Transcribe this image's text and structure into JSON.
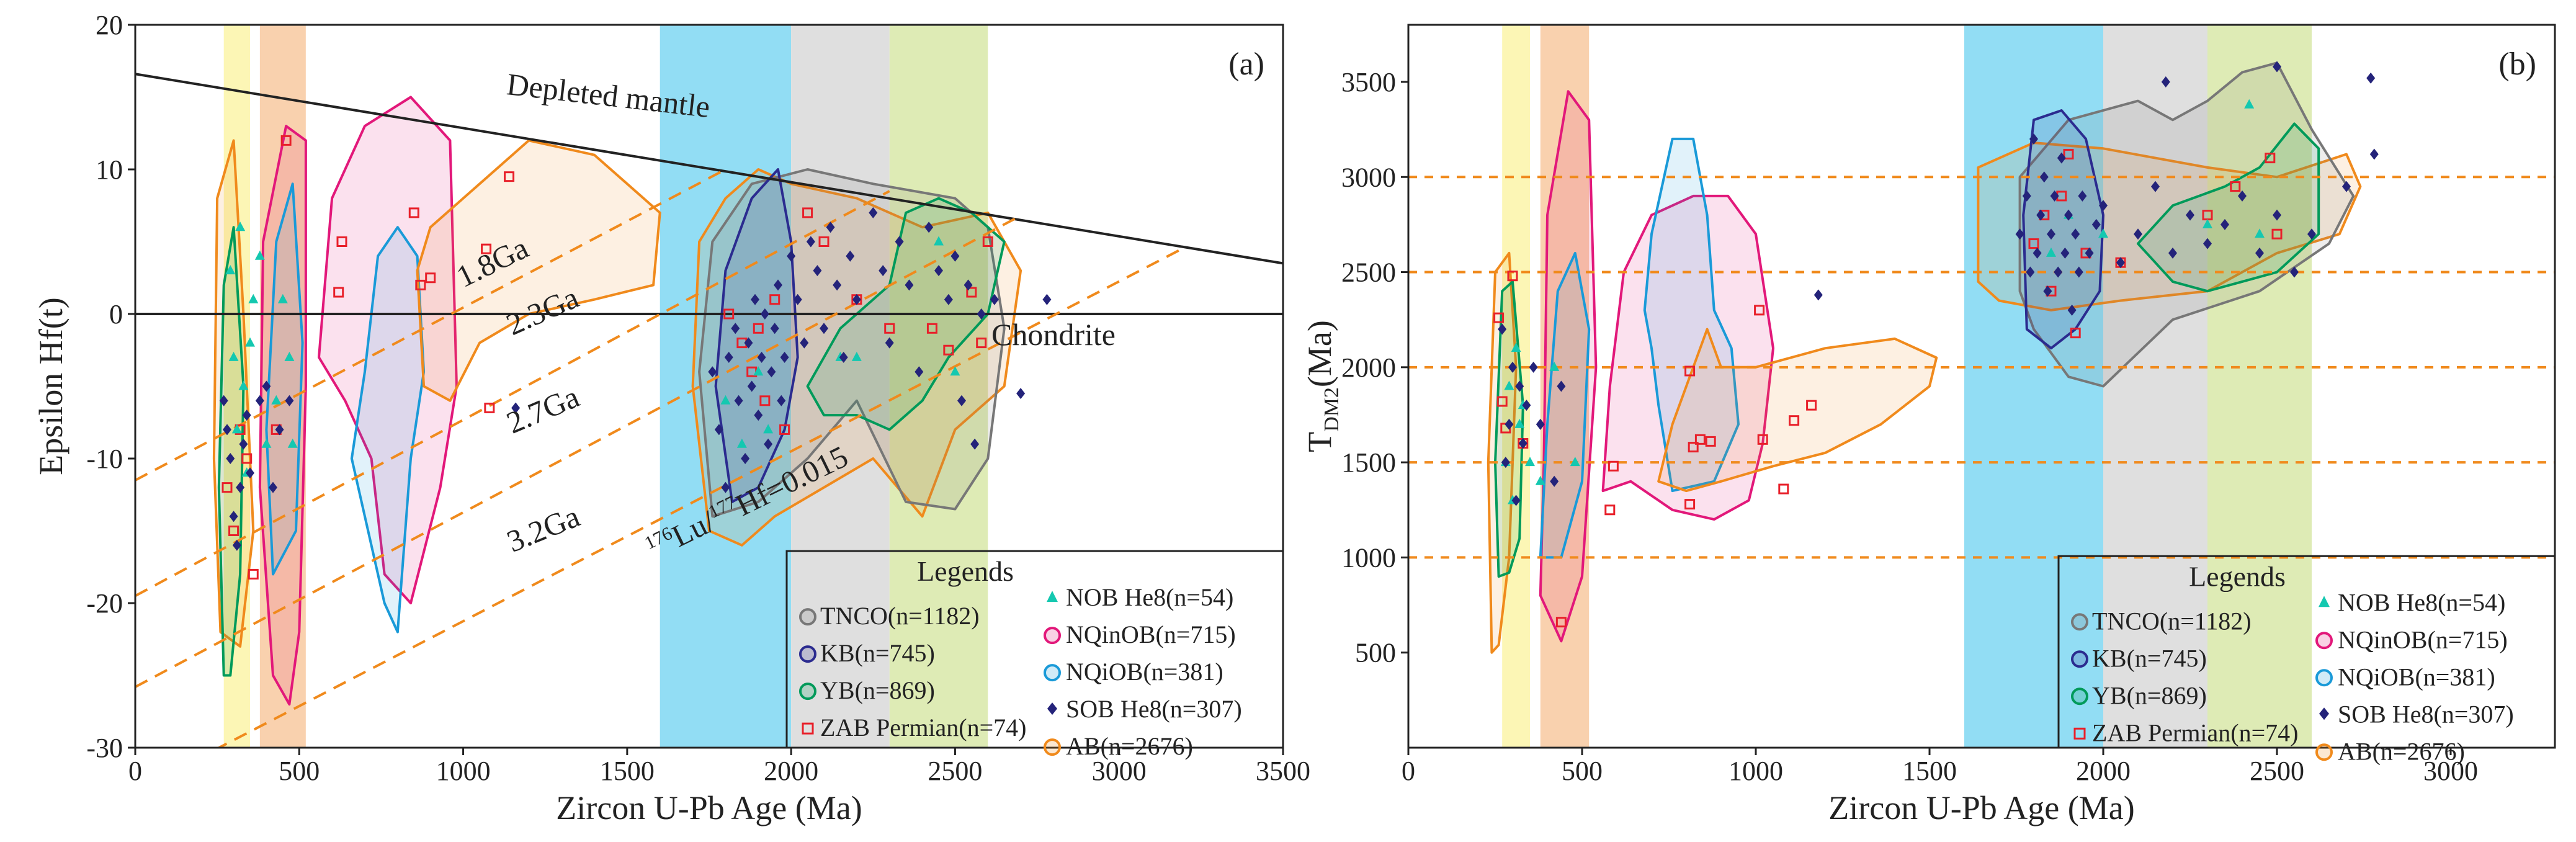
{
  "chart_data": [
    {
      "type": "scatter",
      "panel_label": "(a)",
      "xlabel": "Zircon U-Pb Age (Ma)",
      "ylabel": "Epsilon Hf(t)",
      "xlim": [
        0,
        3500
      ],
      "ylim": [
        -30,
        20
      ],
      "xticks": [
        "0",
        "500",
        "1000",
        "1500",
        "2000",
        "2500",
        "3000",
        "3500"
      ],
      "yticks": [
        "20",
        "10",
        "0",
        "-10",
        "-20",
        "-30"
      ],
      "annotations": {
        "depleted_mantle": "Depleted mantle",
        "chondrite": "Chondrite",
        "lines": [
          "1.8Ga",
          "2.3Ga",
          "2.7Ga",
          "3.2Ga"
        ],
        "lu_hf_sup1": "176",
        "lu_hf_mid": "Lu/",
        "lu_hf_sup2": "177",
        "lu_hf_end": "Hf=0.015"
      },
      "reference_lines": [
        {
          "name": "Depleted mantle",
          "x": [
            0,
            3500
          ],
          "y": [
            16.6,
            3.5
          ]
        },
        {
          "name": "Chondrite",
          "x": [
            0,
            3500
          ],
          "y": [
            0,
            0
          ]
        },
        {
          "name": "1.8Ga",
          "x": [
            0,
            1800
          ],
          "y": [
            -11.5,
            10
          ]
        },
        {
          "name": "2.3Ga",
          "x": [
            0,
            2300
          ],
          "y": [
            -19.5,
            8.5
          ]
        },
        {
          "name": "2.7Ga",
          "x": [
            0,
            2700
          ],
          "y": [
            -25.8,
            6.8
          ]
        },
        {
          "name": "3.2Ga",
          "x": [
            0,
            3200
          ],
          "y": [
            -33,
            4.6
          ]
        }
      ],
      "bands": [
        {
          "x": [
            270,
            350
          ],
          "color": "#fbf5a8"
        },
        {
          "x": [
            380,
            520
          ],
          "color": "#f8c9a0"
        },
        {
          "x": [
            1600,
            2000
          ],
          "color": "#7fd7f2"
        },
        {
          "x": [
            2000,
            2300
          ],
          "color": "#d9d9d9"
        },
        {
          "x": [
            2300,
            2600
          ],
          "color": "#d8e8a8"
        }
      ],
      "series": [
        {
          "name": "ZAB Permian",
          "points": [
            [
              280,
              -12
            ],
            [
              300,
              -15
            ],
            [
              320,
              -8
            ],
            [
              340,
              -10
            ],
            [
              360,
              -18
            ],
            [
              430,
              -8
            ],
            [
              460,
              12
            ],
            [
              630,
              5
            ],
            [
              620,
              1.5
            ],
            [
              850,
              7
            ],
            [
              870,
              2
            ],
            [
              900,
              2.5
            ],
            [
              1080,
              -6.5
            ],
            [
              1070,
              4.5
            ],
            [
              1140,
              9.5
            ],
            [
              1810,
              0
            ],
            [
              1850,
              -2
            ],
            [
              1880,
              -4
            ],
            [
              1900,
              -1
            ],
            [
              1920,
              -6
            ],
            [
              1950,
              1
            ],
            [
              1980,
              -8
            ],
            [
              2050,
              7
            ],
            [
              2100,
              5
            ],
            [
              2200,
              1
            ],
            [
              2300,
              -1
            ],
            [
              2430,
              -1
            ],
            [
              2480,
              -2.5
            ],
            [
              2550,
              1.5
            ],
            [
              2600,
              5
            ],
            [
              2580,
              -2
            ]
          ]
        },
        {
          "name": "NOB He8",
          "points": [
            [
              290,
              3
            ],
            [
              300,
              -3
            ],
            [
              310,
              -8
            ],
            [
              320,
              6
            ],
            [
              330,
              -5
            ],
            [
              340,
              -11
            ],
            [
              350,
              -2
            ],
            [
              360,
              1
            ],
            [
              380,
              4
            ],
            [
              400,
              -9
            ],
            [
              430,
              -6
            ],
            [
              450,
              1
            ],
            [
              480,
              -9
            ],
            [
              470,
              -3
            ],
            [
              1800,
              -6
            ],
            [
              1850,
              -9
            ],
            [
              1900,
              -4
            ],
            [
              1930,
              -8
            ],
            [
              2150,
              -3
            ],
            [
              2200,
              -3
            ],
            [
              2450,
              5
            ],
            [
              2500,
              -4
            ]
          ]
        },
        {
          "name": "SOB He8",
          "points": [
            [
              270,
              -6
            ],
            [
              280,
              -8
            ],
            [
              290,
              -10
            ],
            [
              300,
              -14
            ],
            [
              310,
              -16
            ],
            [
              320,
              -12
            ],
            [
              330,
              -9
            ],
            [
              340,
              -7
            ],
            [
              350,
              -11
            ],
            [
              380,
              -6
            ],
            [
              400,
              -5
            ],
            [
              420,
              -12
            ],
            [
              440,
              -8
            ],
            [
              470,
              -6
            ],
            [
              1160,
              -6.5
            ],
            [
              1760,
              -4
            ],
            [
              1780,
              -8
            ],
            [
              1800,
              -12
            ],
            [
              1810,
              -3
            ],
            [
              1830,
              -1
            ],
            [
              1840,
              -6
            ],
            [
              1860,
              -10
            ],
            [
              1870,
              -2
            ],
            [
              1880,
              -5
            ],
            [
              1890,
              1
            ],
            [
              1900,
              -7
            ],
            [
              1910,
              -3
            ],
            [
              1920,
              0
            ],
            [
              1930,
              -9
            ],
            [
              1940,
              -4
            ],
            [
              1950,
              -1
            ],
            [
              1960,
              2
            ],
            [
              1970,
              -6
            ],
            [
              1980,
              -3
            ],
            [
              2000,
              4
            ],
            [
              2020,
              1
            ],
            [
              2040,
              -2
            ],
            [
              2060,
              5
            ],
            [
              2080,
              3
            ],
            [
              2100,
              -1
            ],
            [
              2120,
              6
            ],
            [
              2140,
              2
            ],
            [
              2160,
              -3
            ],
            [
              2180,
              4
            ],
            [
              2200,
              1
            ],
            [
              2250,
              7
            ],
            [
              2280,
              3
            ],
            [
              2300,
              -2
            ],
            [
              2330,
              5
            ],
            [
              2360,
              2
            ],
            [
              2390,
              -4
            ],
            [
              2420,
              6
            ],
            [
              2450,
              3
            ],
            [
              2480,
              1
            ],
            [
              2500,
              4
            ],
            [
              2520,
              -6
            ],
            [
              2540,
              2
            ],
            [
              2560,
              -9
            ],
            [
              2580,
              0
            ],
            [
              2620,
              1
            ],
            [
              2700,
              -5.5
            ],
            [
              2780,
              1
            ]
          ]
        }
      ],
      "legend": {
        "title": "Legends",
        "left": [
          "TNCO(n=1182)",
          "KB(n=745)",
          "YB(n=869)",
          "ZAB Permian(n=74)"
        ],
        "right": [
          "NOB He8(n=54)",
          "NQinOB(n=715)",
          "NQiOB(n=381)",
          "SOB He8(n=307)",
          "AB(n=2676)"
        ]
      }
    },
    {
      "type": "scatter",
      "panel_label": "(b)",
      "xlabel": "Zircon U-Pb Age (Ma)",
      "ylabel_main": "T",
      "ylabel_sub": "DM2",
      "ylabel_unit": "(Ma)",
      "xlim": [
        0,
        3300
      ],
      "ylim": [
        0,
        3800
      ],
      "xticks": [
        "0",
        "500",
        "1000",
        "1500",
        "2000",
        "2500",
        "3000"
      ],
      "yticks": [
        "500",
        "1000",
        "1500",
        "2000",
        "2500",
        "3000",
        "3500"
      ],
      "hlines": [
        1000,
        1500,
        2000,
        2500,
        3000
      ],
      "bands": [
        {
          "x": [
            270,
            350
          ],
          "color": "#fbf5a8"
        },
        {
          "x": [
            380,
            520
          ],
          "color": "#f8c9a0"
        },
        {
          "x": [
            1600,
            2000
          ],
          "color": "#7fd7f2"
        },
        {
          "x": [
            2000,
            2300
          ],
          "color": "#d9d9d9"
        },
        {
          "x": [
            2300,
            2600
          ],
          "color": "#d8e8a8"
        }
      ],
      "series": [
        {
          "name": "ZAB Permian",
          "points": [
            [
              260,
              2260
            ],
            [
              270,
              1820
            ],
            [
              280,
              1680
            ],
            [
              300,
              2480
            ],
            [
              330,
              1600
            ],
            [
              440,
              660
            ],
            [
              580,
              1250
            ],
            [
              590,
              1480
            ],
            [
              810,
              1280
            ],
            [
              810,
              1980
            ],
            [
              820,
              1580
            ],
            [
              840,
              1620
            ],
            [
              870,
              1610
            ],
            [
              1010,
              2300
            ],
            [
              1020,
              1620
            ],
            [
              1080,
              1360
            ],
            [
              1110,
              1720
            ],
            [
              1160,
              1800
            ],
            [
              1800,
              2650
            ],
            [
              1830,
              2800
            ],
            [
              1850,
              2400
            ],
            [
              1880,
              2900
            ],
            [
              1900,
              3120
            ],
            [
              1920,
              2180
            ],
            [
              1950,
              2600
            ],
            [
              2050,
              2550
            ],
            [
              2300,
              2800
            ],
            [
              2380,
              2950
            ],
            [
              2480,
              3100
            ],
            [
              2500,
              2700
            ]
          ]
        },
        {
          "name": "NOB He8",
          "points": [
            [
              280,
              1500
            ],
            [
              290,
              1900
            ],
            [
              300,
              1300
            ],
            [
              310,
              2100
            ],
            [
              320,
              1700
            ],
            [
              330,
              1800
            ],
            [
              350,
              1500
            ],
            [
              380,
              1400
            ],
            [
              420,
              2000
            ],
            [
              480,
              1500
            ],
            [
              1850,
              2600
            ],
            [
              1900,
              2800
            ],
            [
              2000,
              2700
            ],
            [
              2300,
              2750
            ],
            [
              2420,
              3380
            ],
            [
              2450,
              2700
            ]
          ]
        },
        {
          "name": "SOB He8",
          "points": [
            [
              270,
              2200
            ],
            [
              280,
              1500
            ],
            [
              290,
              1700
            ],
            [
              300,
              2000
            ],
            [
              310,
              1300
            ],
            [
              320,
              1900
            ],
            [
              330,
              1600
            ],
            [
              340,
              1800
            ],
            [
              360,
              2000
            ],
            [
              380,
              1700
            ],
            [
              420,
              1400
            ],
            [
              440,
              1900
            ],
            [
              1180,
              2380
            ],
            [
              1760,
              2700
            ],
            [
              1780,
              2900
            ],
            [
              1790,
              2500
            ],
            [
              1800,
              3200
            ],
            [
              1810,
              2600
            ],
            [
              1820,
              2800
            ],
            [
              1830,
              3000
            ],
            [
              1840,
              2400
            ],
            [
              1850,
              2700
            ],
            [
              1860,
              2900
            ],
            [
              1870,
              2500
            ],
            [
              1880,
              3100
            ],
            [
              1890,
              2600
            ],
            [
              1900,
              2800
            ],
            [
              1910,
              2300
            ],
            [
              1920,
              2700
            ],
            [
              1930,
              2500
            ],
            [
              1940,
              2900
            ],
            [
              1960,
              2600
            ],
            [
              1980,
              2750
            ],
            [
              2000,
              2850
            ],
            [
              2050,
              2550
            ],
            [
              2100,
              2700
            ],
            [
              2150,
              2950
            ],
            [
              2180,
              3500
            ],
            [
              2200,
              2600
            ],
            [
              2250,
              2800
            ],
            [
              2300,
              2650
            ],
            [
              2350,
              2750
            ],
            [
              2400,
              2900
            ],
            [
              2450,
              2600
            ],
            [
              2500,
              2800
            ],
            [
              2550,
              2500
            ],
            [
              2600,
              2700
            ],
            [
              2700,
              2950
            ],
            [
              2780,
              3120
            ],
            [
              2770,
              3520
            ],
            [
              2500,
              3580
            ]
          ]
        }
      ],
      "legend": {
        "title": "Legends",
        "left": [
          "TNCO(n=1182)",
          "KB(n=745)",
          "YB(n=869)",
          "ZAB Permian(n=74)"
        ],
        "right": [
          "NOB He8(n=54)",
          "NQinOB(n=715)",
          "NQiOB(n=381)",
          "SOB He8(n=307)",
          "AB(n=2676)"
        ]
      }
    }
  ]
}
